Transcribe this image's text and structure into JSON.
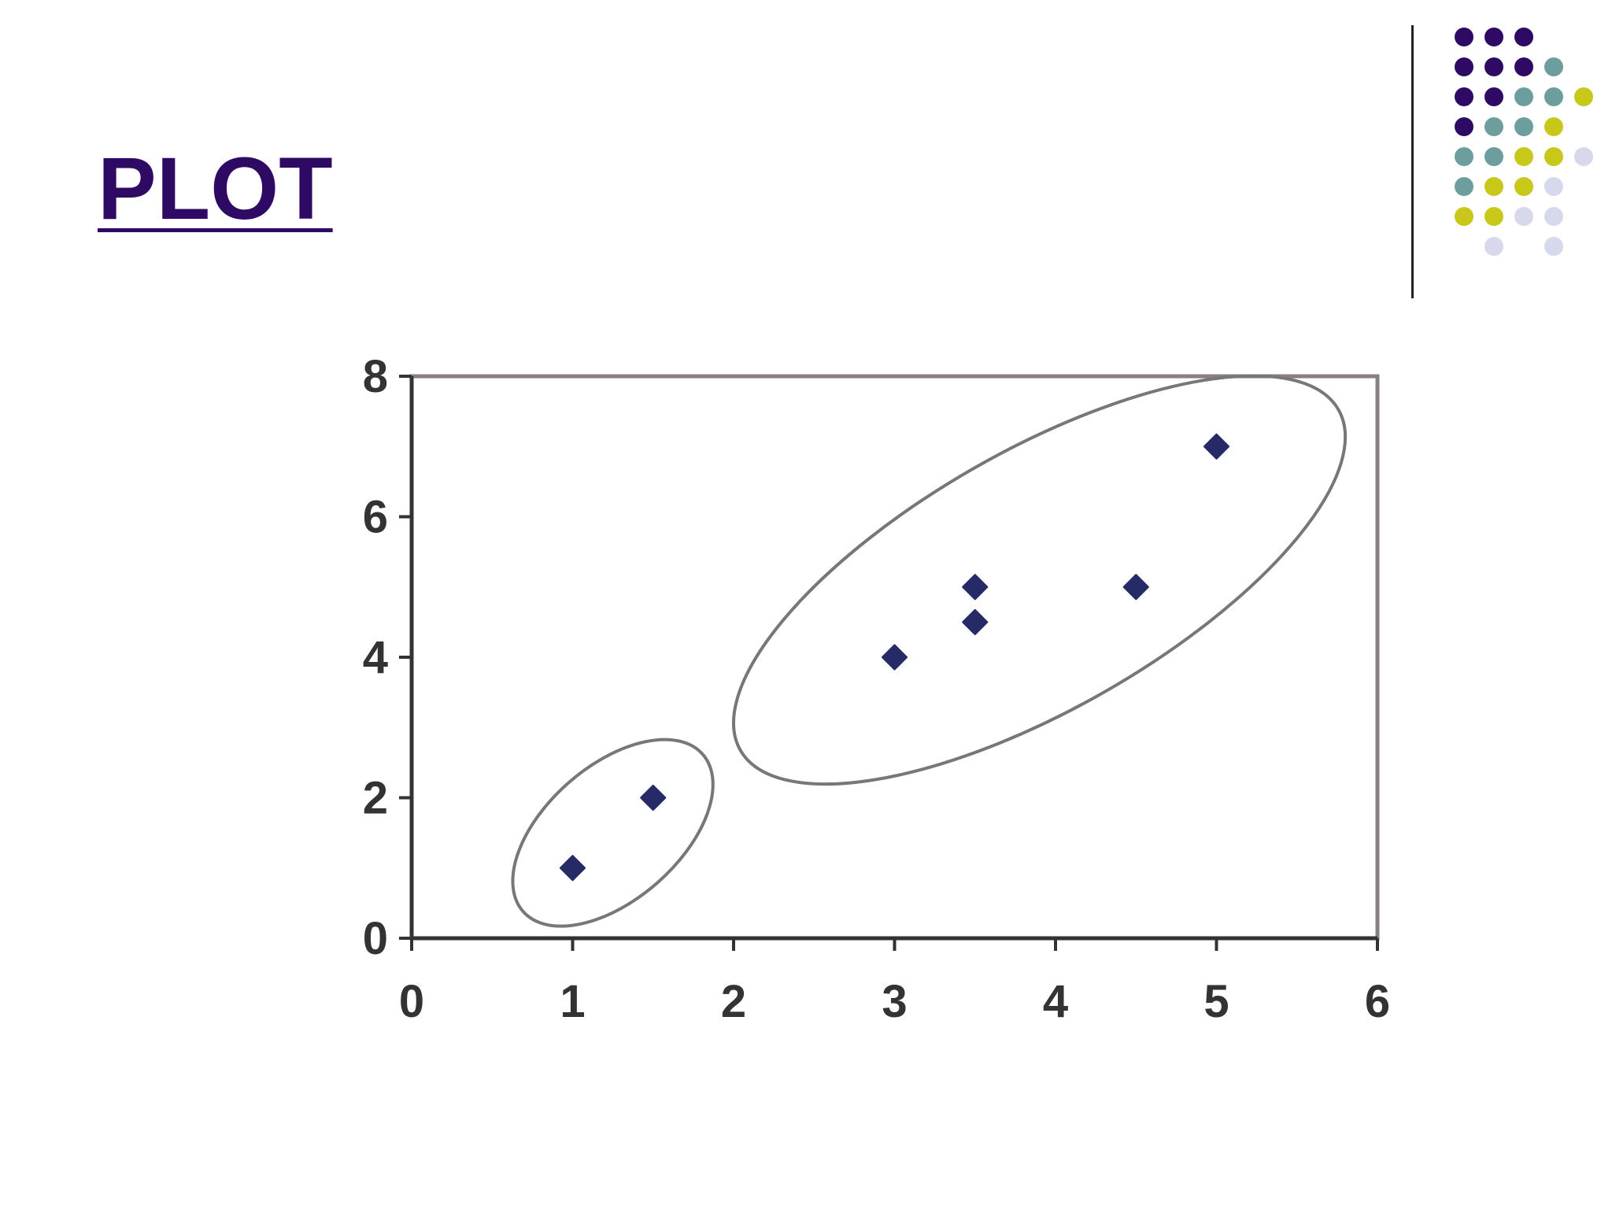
{
  "slide": {
    "title": "PLOT",
    "title_color": "#2e0a64"
  },
  "decoration": {
    "dot_colors": {
      "purple": "#2e0a64",
      "teal": "#6b9e9c",
      "yellow": "#c8c81a",
      "lavender": "#d8d8ec"
    },
    "dot_grid": [
      [
        "purple",
        "purple",
        "purple",
        null,
        null
      ],
      [
        "purple",
        "purple",
        "purple",
        "teal",
        null
      ],
      [
        "purple",
        "purple",
        "teal",
        "teal",
        "yellow"
      ],
      [
        "purple",
        "teal",
        "teal",
        "yellow",
        null
      ],
      [
        "teal",
        "teal",
        "yellow",
        "yellow",
        "lavender"
      ],
      [
        "teal",
        "yellow",
        "yellow",
        "lavender",
        null
      ],
      [
        "yellow",
        "yellow",
        "lavender",
        "lavender",
        null
      ],
      [
        null,
        "lavender",
        null,
        "lavender",
        null
      ]
    ]
  },
  "chart_data": {
    "type": "scatter",
    "title": "",
    "xlabel": "",
    "ylabel": "",
    "xlim": [
      0,
      6
    ],
    "ylim": [
      0,
      8
    ],
    "xticks": [
      "0",
      "1",
      "2",
      "3",
      "4",
      "5",
      "6"
    ],
    "yticks": [
      "0",
      "2",
      "4",
      "6",
      "8"
    ],
    "grid": false,
    "marker_color": "#262a66",
    "series": [
      {
        "x": [
          1,
          1.5,
          3,
          3.5,
          3.5,
          4.5,
          5
        ],
        "y": [
          1,
          2,
          4,
          4.5,
          5,
          5,
          7
        ]
      }
    ],
    "clusters": [
      {
        "points": [
          [
            1,
            1
          ],
          [
            1.5,
            2
          ]
        ]
      },
      {
        "points": [
          [
            3,
            4
          ],
          [
            3.5,
            4.5
          ],
          [
            3.5,
            5
          ],
          [
            4.5,
            5
          ],
          [
            5,
            7
          ]
        ]
      }
    ]
  }
}
